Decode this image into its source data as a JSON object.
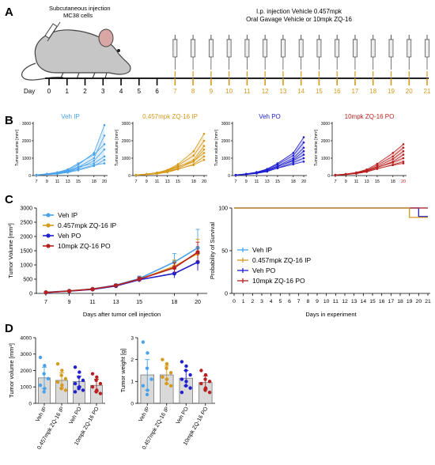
{
  "colors": {
    "veh_ip": "#4aa3ea",
    "zq_ip": "#d59a1c",
    "veh_po": "#1f1fcf",
    "zq_po": "#b8201f",
    "axis": "#000000",
    "mouse_body": "#c6c6c6",
    "mouse_outline": "#444444",
    "timeline_orange": "#d59a1c"
  },
  "panel_a": {
    "letter": "A",
    "injection_label_1": "Subcutaneous injection",
    "injection_label_2": "MC38 cells",
    "treatment_label_1": "I.p. injection Vehicle 0.457mpk",
    "treatment_label_2": "Oral Gavage Vehicle or 10mpk ZQ-16",
    "day_label": "Day",
    "days": [
      "0",
      "1",
      "2",
      "3",
      "4",
      "5",
      "6",
      "7",
      "8",
      "9",
      "10",
      "11",
      "12",
      "13",
      "14",
      "15",
      "16",
      "17",
      "18",
      "19",
      "20",
      "21"
    ],
    "icons": [
      "syringe-icon",
      "mouse-icon"
    ]
  },
  "panel_b": {
    "letter": "B",
    "ylabel": "Tumor volume [mm³]",
    "yticks": [
      "3000",
      "2000",
      "1000",
      "0"
    ],
    "xticks": [
      "7",
      "9",
      "11",
      "13",
      "15",
      "18",
      "20"
    ]
  },
  "panel_c": {
    "letter": "C"
  },
  "panel_d": {
    "letter": "D"
  },
  "chart_data": [
    {
      "type": "line",
      "panel": "B1",
      "title": "Veh IP",
      "x": [
        7,
        9,
        11,
        13,
        15,
        18,
        20
      ],
      "ylim": [
        0,
        3000
      ],
      "series": [
        {
          "values": [
            40,
            90,
            160,
            320,
            620,
            1300,
            2900
          ]
        },
        {
          "values": [
            30,
            70,
            130,
            250,
            480,
            1000,
            2300
          ]
        },
        {
          "values": [
            45,
            100,
            190,
            360,
            700,
            1200,
            1800
          ]
        },
        {
          "values": [
            25,
            60,
            120,
            220,
            420,
            850,
            1500
          ]
        },
        {
          "values": [
            35,
            80,
            150,
            280,
            500,
            700,
            1100
          ]
        },
        {
          "values": [
            20,
            50,
            90,
            170,
            300,
            550,
            900
          ]
        },
        {
          "values": [
            30,
            60,
            110,
            200,
            360,
            600,
            700
          ]
        }
      ]
    },
    {
      "type": "line",
      "panel": "B2",
      "title": "0.457mpk ZQ-16 IP",
      "x": [
        7,
        9,
        11,
        13,
        15,
        18,
        20
      ],
      "ylim": [
        0,
        3000
      ],
      "series": [
        {
          "values": [
            40,
            90,
            170,
            330,
            650,
            1400,
            2400
          ]
        },
        {
          "values": [
            35,
            80,
            150,
            300,
            580,
            1150,
            2000
          ]
        },
        {
          "values": [
            30,
            70,
            130,
            250,
            480,
            900,
            1700
          ]
        },
        {
          "values": [
            25,
            60,
            120,
            220,
            420,
            800,
            1500
          ]
        },
        {
          "values": [
            40,
            85,
            160,
            290,
            520,
            820,
            1300
          ]
        },
        {
          "values": [
            20,
            50,
            100,
            190,
            350,
            650,
            1100
          ]
        },
        {
          "values": [
            30,
            65,
            120,
            210,
            380,
            600,
            900
          ]
        }
      ]
    },
    {
      "type": "line",
      "panel": "B3",
      "title": "Veh PO",
      "x": [
        7,
        9,
        11,
        13,
        15,
        18,
        20
      ],
      "ylim": [
        0,
        3000
      ],
      "series": [
        {
          "values": [
            40,
            100,
            200,
            380,
            700,
            1300,
            2200
          ]
        },
        {
          "values": [
            35,
            90,
            180,
            340,
            640,
            1150,
            1900
          ]
        },
        {
          "values": [
            30,
            80,
            160,
            300,
            560,
            1000,
            1600
          ]
        },
        {
          "values": [
            25,
            70,
            140,
            270,
            500,
            900,
            1400
          ]
        },
        {
          "values": [
            40,
            90,
            170,
            300,
            520,
            850,
            1200
          ]
        },
        {
          "values": [
            20,
            60,
            120,
            230,
            430,
            750,
            1000
          ]
        },
        {
          "values": [
            30,
            70,
            130,
            240,
            420,
            650,
            800
          ]
        }
      ]
    },
    {
      "type": "line",
      "panel": "B4",
      "title": "10mpk ZQ-16 PO",
      "x": [
        7,
        9,
        11,
        13,
        15,
        18,
        20
      ],
      "ylim": [
        0,
        3000
      ],
      "series": [
        {
          "values": [
            40,
            90,
            180,
            350,
            680,
            1300,
            1800
          ]
        },
        {
          "values": [
            35,
            85,
            160,
            310,
            600,
            1100,
            1600
          ]
        },
        {
          "values": [
            30,
            75,
            150,
            280,
            520,
            950,
            1400
          ]
        },
        {
          "values": [
            25,
            65,
            130,
            250,
            460,
            800,
            1200
          ]
        },
        {
          "values": [
            40,
            85,
            160,
            280,
            480,
            750,
            1000
          ]
        },
        {
          "values": [
            20,
            55,
            110,
            210,
            380,
            620,
            800
          ]
        },
        {
          "values": [
            30,
            65,
            120,
            220,
            400,
            600,
            700
          ]
        }
      ]
    },
    {
      "type": "line",
      "panel": "C1",
      "xlabel": "Days after tumor cell injection",
      "ylabel": "Tumor Volume [mm³]",
      "ylim": [
        0,
        3000
      ],
      "yticks": [
        0,
        500,
        1000,
        1500,
        2000,
        2500,
        3000
      ],
      "x": [
        7,
        9,
        11,
        13,
        15,
        18,
        20
      ],
      "legend_position": "top-left",
      "series": [
        {
          "name": "Veh IP",
          "values": [
            40,
            90,
            160,
            290,
            520,
            1100,
            1600
          ],
          "err": [
            5,
            12,
            22,
            45,
            90,
            300,
            650
          ]
        },
        {
          "name": "0.457mpk ZQ-16 IP",
          "values": [
            35,
            80,
            150,
            270,
            490,
            950,
            1400
          ],
          "err": [
            5,
            10,
            20,
            40,
            80,
            220,
            500
          ]
        },
        {
          "name": "Veh PO",
          "values": [
            30,
            80,
            140,
            260,
            480,
            700,
            1100
          ],
          "err": [
            5,
            10,
            18,
            35,
            70,
            160,
            300
          ]
        },
        {
          "name": "10mpk ZQ-16 PO",
          "values": [
            35,
            85,
            150,
            280,
            500,
            900,
            1450
          ],
          "err": [
            5,
            10,
            20,
            40,
            80,
            180,
            350
          ]
        }
      ]
    },
    {
      "type": "line",
      "panel": "C2",
      "xlabel": "Days in experiment",
      "ylabel": "Probability of Survival",
      "ylim": [
        0,
        100
      ],
      "yticks": [
        0,
        50,
        100
      ],
      "xticks": [
        0,
        1,
        2,
        3,
        4,
        5,
        6,
        7,
        8,
        9,
        10,
        11,
        12,
        13,
        14,
        15,
        16,
        17,
        18,
        19,
        20,
        21
      ],
      "legend_position": "middle-left",
      "series": [
        {
          "name": "Veh IP",
          "x": [
            0,
            21
          ],
          "values": [
            100,
            100
          ]
        },
        {
          "name": "0.457mpk ZQ-16 IP",
          "x": [
            0,
            19,
            19,
            21
          ],
          "values": [
            100,
            100,
            89,
            89
          ]
        },
        {
          "name": "Veh PO",
          "x": [
            0,
            20,
            20,
            21
          ],
          "values": [
            100,
            100,
            90,
            90
          ]
        },
        {
          "name": "10mpk ZQ-16 PO",
          "x": [
            0,
            21
          ],
          "values": [
            100,
            100
          ]
        }
      ]
    },
    {
      "type": "bar",
      "panel": "D1",
      "ylabel": "Tumor volume [mm³]",
      "ylim": [
        0,
        4000
      ],
      "yticks": [
        0,
        1000,
        2000,
        3000,
        4000
      ],
      "categories": [
        "Veh IP",
        "0.457mpk ZQ-16 IP",
        "Veh PO",
        "10mpk ZQ-16 PO"
      ],
      "values": [
        1550,
        1400,
        1330,
        1100
      ],
      "err": [
        650,
        450,
        320,
        370
      ],
      "points": [
        [
          2800,
          2300,
          1800,
          1500,
          1100,
          900,
          700
        ],
        [
          2400,
          2000,
          1700,
          1500,
          1300,
          1100,
          900,
          800
        ],
        [
          2200,
          1900,
          1600,
          1400,
          1200,
          1000,
          900,
          800,
          700
        ],
        [
          1800,
          1600,
          1400,
          1200,
          1000,
          800,
          700,
          600
        ]
      ]
    },
    {
      "type": "bar",
      "panel": "D2",
      "ylabel": "Tumor weight [g]",
      "ylim": [
        0,
        3
      ],
      "yticks": [
        0,
        1,
        2,
        3
      ],
      "categories": [
        "Veh IP",
        "0.457mpk ZQ-16 IP",
        "Veh PO",
        "10mpk ZQ-16 PO"
      ],
      "values": [
        1.3,
        1.3,
        1.15,
        0.95
      ],
      "err": [
        0.7,
        0.4,
        0.35,
        0.3
      ],
      "points": [
        [
          2.8,
          2.3,
          1.6,
          1.1,
          0.8,
          0.6,
          0.4
        ],
        [
          2.0,
          1.8,
          1.6,
          1.4,
          1.2,
          1.1,
          0.9,
          0.8
        ],
        [
          1.9,
          1.7,
          1.5,
          1.3,
          1.1,
          1.0,
          0.8,
          0.7,
          0.5
        ],
        [
          1.5,
          1.3,
          1.1,
          1.0,
          0.9,
          0.7,
          0.6,
          0.5
        ]
      ]
    }
  ]
}
